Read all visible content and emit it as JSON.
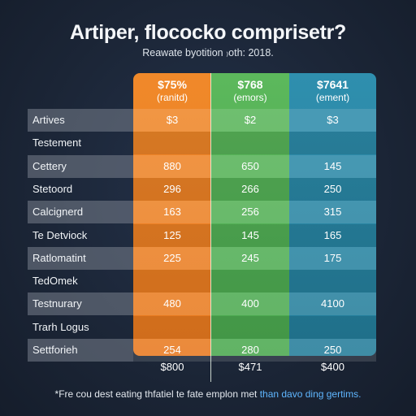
{
  "header": {
    "title": "Artiper, flococko comprisetr?",
    "subtitle": "Reawate byotition ₎oth: 2018."
  },
  "columns": [
    {
      "price": "$75%",
      "sub": "(ranitd)",
      "color": "#f0892a"
    },
    {
      "price": "$768",
      "sub": "(emors)",
      "color": "#5cb85c"
    },
    {
      "price": "$7641",
      "sub": "(ement)",
      "color": "#2f8fae"
    }
  ],
  "chart_data": {
    "type": "table",
    "title": "Artiper, flococko comprisetr?",
    "subtitle": "Reawate byotition ₎oth: 2018.",
    "columns": [
      "$75% (ranitd)",
      "$768 (emors)",
      "$7641 (ement)"
    ],
    "rows": [
      {
        "label": "Artives",
        "values": [
          "$3",
          "$2",
          "$3"
        ]
      },
      {
        "label": "Testement",
        "values": [
          "",
          "",
          ""
        ]
      },
      {
        "label": "Cettery",
        "values": [
          "880",
          "650",
          "145"
        ]
      },
      {
        "label": "Stetoord",
        "values": [
          "296",
          "266",
          "250"
        ]
      },
      {
        "label": "Calcignerd",
        "values": [
          "163",
          "256",
          "315"
        ]
      },
      {
        "label": "Te Detviock",
        "values": [
          "125",
          "145",
          "165"
        ]
      },
      {
        "label": "Ratlomatint",
        "values": [
          "225",
          "245",
          "175"
        ]
      },
      {
        "label": "TedOmek",
        "values": [
          "",
          "",
          ""
        ]
      },
      {
        "label": "Testnurary",
        "values": [
          "480",
          "400",
          "4100"
        ]
      },
      {
        "label": "Trarh Logus",
        "values": [
          "",
          "",
          ""
        ]
      },
      {
        "label": "Settforieh",
        "values": [
          "254",
          "280",
          "250"
        ]
      }
    ],
    "totals": [
      "$800",
      "$471",
      "$400"
    ]
  },
  "footnote": {
    "text": "*Fre cou dest eating thfatiel te fate emplon met ",
    "highlight": "than davo ding gertims."
  }
}
